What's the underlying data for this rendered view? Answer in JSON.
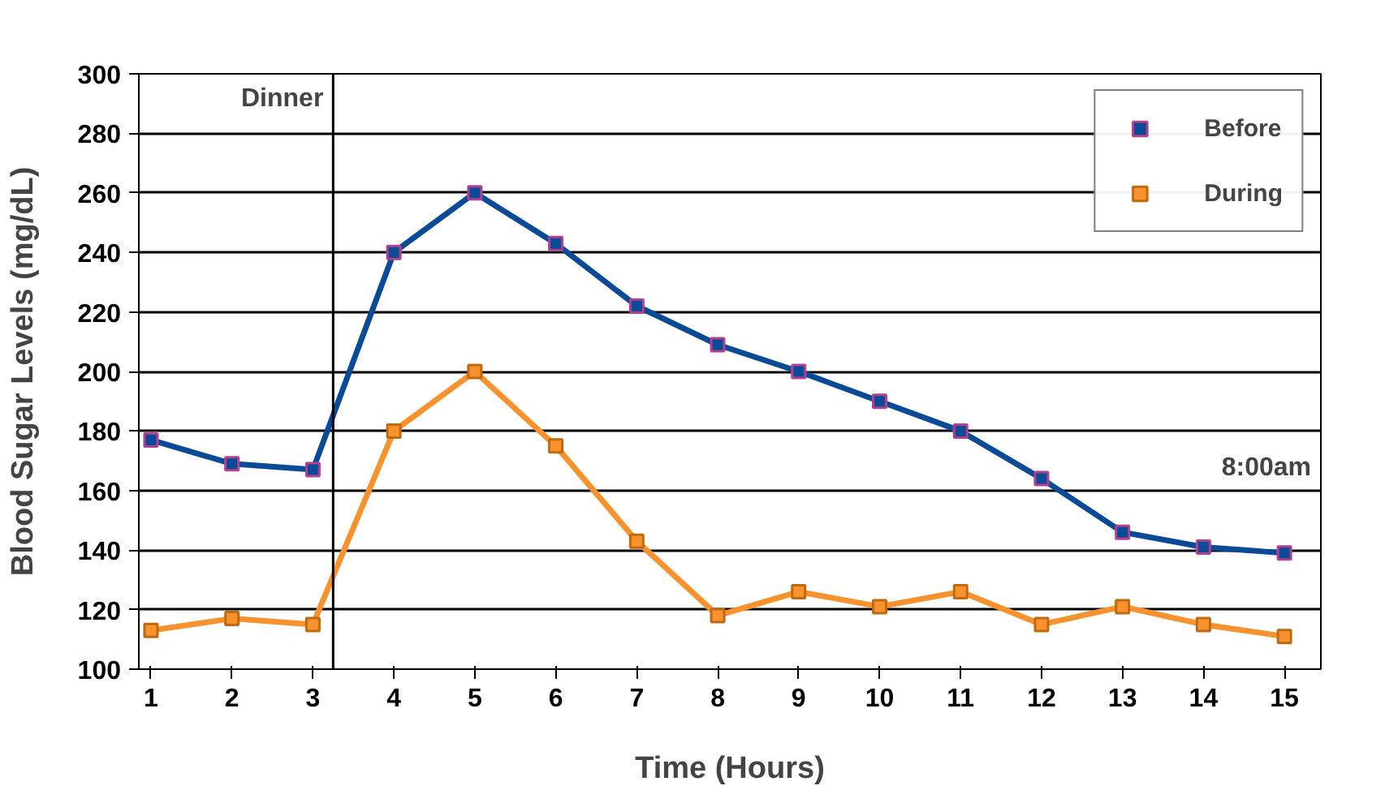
{
  "chart_data": {
    "type": "line",
    "xlabel": "Time (Hours)",
    "ylabel": "Blood Sugar Levels (mg/dL)",
    "x": [
      1,
      2,
      3,
      4,
      5,
      6,
      7,
      8,
      9,
      10,
      11,
      12,
      13,
      14,
      15
    ],
    "series": [
      {
        "name": "Before",
        "color": "#0a4a97",
        "values": [
          177,
          169,
          167,
          240,
          260,
          243,
          222,
          209,
          200,
          190,
          180,
          164,
          146,
          141,
          139
        ]
      },
      {
        "name": "During",
        "color": "#f7922e",
        "values": [
          113,
          117,
          115,
          180,
          200,
          175,
          143,
          118,
          126,
          121,
          126,
          115,
          121,
          115,
          111
        ]
      }
    ],
    "xlim": [
      0.85,
      15.45
    ],
    "xticks": [
      1,
      2,
      3,
      4,
      5,
      6,
      7,
      8,
      9,
      10,
      11,
      12,
      13,
      14,
      15
    ],
    "ylim": [
      100,
      300
    ],
    "yticks": [
      100,
      120,
      140,
      160,
      180,
      200,
      220,
      240,
      260,
      280,
      300
    ],
    "ref_lines": [
      {
        "axis": "x",
        "value": 3.25,
        "label": "Dinner"
      }
    ],
    "annotations": [
      "8:00am"
    ],
    "grid": "y",
    "legend": "top right",
    "marker": "square",
    "line_style": "solid"
  }
}
